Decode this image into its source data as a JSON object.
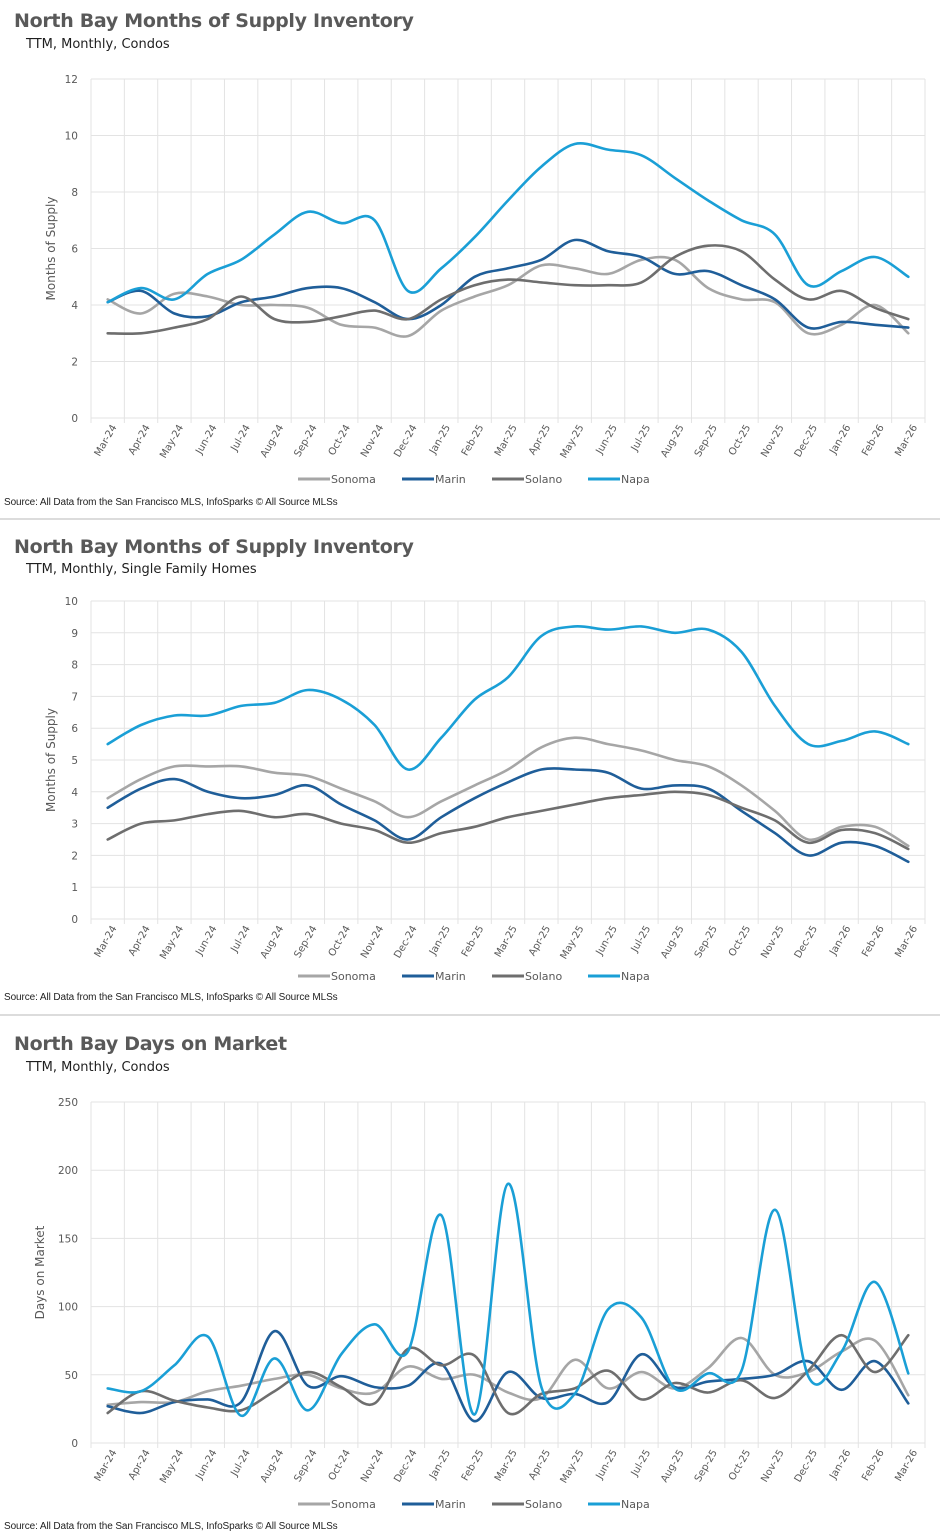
{
  "page": {
    "colors": {
      "Sonoma": "#a6a6a6",
      "Marin": "#1f5e99",
      "Solano": "#6e6e6e",
      "Napa": "#1a9fd6",
      "grid": "#e3e3e3",
      "title": "#595959"
    }
  },
  "chart_data": [
    {
      "type": "line",
      "title": "North Bay Months of Supply Inventory",
      "subtitle": "TTM, Monthly, Condos",
      "xlabel": "",
      "ylabel": "Months of Supply",
      "ylim": [
        0,
        12
      ],
      "yticks": [
        0,
        2,
        4,
        6,
        8,
        10,
        12
      ],
      "grid": true,
      "legend": "bottom",
      "source": "Source: All Data from the San Francisco MLS, InfoSparks © All Source MLSs",
      "categories": [
        "Mar-24",
        "Apr-24",
        "May-24",
        "Jun-24",
        "Jul-24",
        "Aug-24",
        "Sep-24",
        "Oct-24",
        "Nov-24",
        "Dec-24",
        "Jan-25",
        "Feb-25",
        "Mar-25",
        "Apr-25",
        "May-25",
        "Jun-25",
        "Jul-25",
        "Aug-25",
        "Sep-25",
        "Oct-25",
        "Nov-25",
        "Dec-25",
        "Jan-26",
        "Feb-26",
        "Mar-26"
      ],
      "series": [
        {
          "name": "Sonoma",
          "values": [
            4.2,
            3.7,
            4.4,
            4.3,
            4.0,
            4.0,
            3.9,
            3.3,
            3.2,
            2.9,
            3.8,
            4.3,
            4.7,
            5.4,
            5.3,
            5.1,
            5.6,
            5.6,
            4.6,
            4.2,
            4.1,
            3.0,
            3.3,
            4.0,
            3.0
          ]
        },
        {
          "name": "Marin",
          "values": [
            4.1,
            4.5,
            3.7,
            3.6,
            4.1,
            4.3,
            4.6,
            4.6,
            4.1,
            3.5,
            4.0,
            5.0,
            5.3,
            5.6,
            6.3,
            5.9,
            5.7,
            5.1,
            5.2,
            4.7,
            4.2,
            3.2,
            3.4,
            3.3,
            3.2
          ]
        },
        {
          "name": "Solano",
          "values": [
            3.0,
            3.0,
            3.2,
            3.5,
            4.3,
            3.5,
            3.4,
            3.6,
            3.8,
            3.5,
            4.2,
            4.7,
            4.9,
            4.8,
            4.7,
            4.7,
            4.8,
            5.7,
            6.1,
            5.9,
            4.9,
            4.2,
            4.5,
            3.9,
            3.5
          ]
        },
        {
          "name": "Napa",
          "values": [
            4.1,
            4.6,
            4.2,
            5.1,
            5.6,
            6.5,
            7.3,
            6.9,
            7.0,
            4.5,
            5.3,
            6.4,
            7.7,
            8.9,
            9.7,
            9.5,
            9.3,
            8.5,
            7.7,
            7.0,
            6.5,
            4.7,
            5.2,
            5.7,
            5.0
          ]
        }
      ]
    },
    {
      "type": "line",
      "title": "North Bay Months of Supply Inventory",
      "subtitle": "TTM, Monthly, Single Family Homes",
      "xlabel": "",
      "ylabel": "Months of Supply",
      "ylim": [
        0,
        10
      ],
      "yticks": [
        0,
        1,
        2,
        3,
        4,
        5,
        6,
        7,
        8,
        9,
        10
      ],
      "grid": true,
      "legend": "bottom",
      "source": "Source: All Data from the San Francisco MLS, InfoSparks © All Source MLSs",
      "categories": [
        "Mar-24",
        "Apr-24",
        "May-24",
        "Jun-24",
        "Jul-24",
        "Aug-24",
        "Sep-24",
        "Oct-24",
        "Nov-24",
        "Dec-24",
        "Jan-25",
        "Feb-25",
        "Mar-25",
        "Apr-25",
        "May-25",
        "Jun-25",
        "Jul-25",
        "Aug-25",
        "Sep-25",
        "Oct-25",
        "Nov-25",
        "Dec-25",
        "Jan-26",
        "Feb-26",
        "Mar-26"
      ],
      "series": [
        {
          "name": "Sonoma",
          "values": [
            3.8,
            4.4,
            4.8,
            4.8,
            4.8,
            4.6,
            4.5,
            4.1,
            3.7,
            3.2,
            3.7,
            4.2,
            4.7,
            5.4,
            5.7,
            5.5,
            5.3,
            5.0,
            4.8,
            4.2,
            3.4,
            2.5,
            2.9,
            2.9,
            2.3
          ]
        },
        {
          "name": "Marin",
          "values": [
            3.5,
            4.1,
            4.4,
            4.0,
            3.8,
            3.9,
            4.2,
            3.6,
            3.1,
            2.5,
            3.2,
            3.8,
            4.3,
            4.7,
            4.7,
            4.6,
            4.1,
            4.2,
            4.1,
            3.4,
            2.7,
            2.0,
            2.4,
            2.3,
            1.8
          ]
        },
        {
          "name": "Solano",
          "values": [
            2.5,
            3.0,
            3.1,
            3.3,
            3.4,
            3.2,
            3.3,
            3.0,
            2.8,
            2.4,
            2.7,
            2.9,
            3.2,
            3.4,
            3.6,
            3.8,
            3.9,
            4.0,
            3.9,
            3.5,
            3.1,
            2.4,
            2.8,
            2.7,
            2.2
          ]
        },
        {
          "name": "Napa",
          "values": [
            5.5,
            6.1,
            6.4,
            6.4,
            6.7,
            6.8,
            7.2,
            6.9,
            6.1,
            4.7,
            5.7,
            6.9,
            7.6,
            8.9,
            9.2,
            9.1,
            9.2,
            9.0,
            9.1,
            8.4,
            6.7,
            5.5,
            5.6,
            5.9,
            5.5
          ]
        }
      ]
    },
    {
      "type": "line",
      "title": "North Bay Days on Market",
      "subtitle": "TTM, Monthly, Condos",
      "xlabel": "",
      "ylabel": "Days on Market",
      "ylim": [
        0,
        250
      ],
      "yticks": [
        0,
        50,
        100,
        150,
        200,
        250
      ],
      "grid": true,
      "legend": "bottom",
      "source": "Source: All Data from the San Francisco MLS, InfoSparks © All Source MLSs",
      "categories": [
        "Mar-24",
        "Apr-24",
        "May-24",
        "Jun-24",
        "Jul-24",
        "Aug-24",
        "Sep-24",
        "Oct-24",
        "Nov-24",
        "Dec-24",
        "Jan-25",
        "Feb-25",
        "Mar-25",
        "Apr-25",
        "May-25",
        "Jun-25",
        "Jul-25",
        "Aug-25",
        "Sep-25",
        "Oct-25",
        "Nov-25",
        "Dec-25",
        "Jan-26",
        "Feb-26",
        "Mar-26"
      ],
      "series": [
        {
          "name": "Sonoma",
          "values": [
            28,
            30,
            30,
            38,
            42,
            47,
            50,
            40,
            37,
            56,
            47,
            50,
            37,
            33,
            61,
            40,
            52,
            40,
            55,
            77,
            50,
            52,
            67,
            75,
            35
          ]
        },
        {
          "name": "Marin",
          "values": [
            27,
            22,
            30,
            32,
            30,
            82,
            42,
            49,
            41,
            42,
            58,
            16,
            52,
            33,
            36,
            30,
            65,
            41,
            45,
            47,
            50,
            60,
            39,
            60,
            29
          ]
        },
        {
          "name": "Solano",
          "values": [
            22,
            38,
            31,
            26,
            24,
            38,
            52,
            41,
            29,
            69,
            57,
            64,
            22,
            36,
            40,
            53,
            32,
            44,
            37,
            46,
            33,
            53,
            79,
            52,
            79
          ]
        },
        {
          "name": "Napa",
          "values": [
            40,
            38,
            57,
            78,
            20,
            62,
            24,
            65,
            87,
            67,
            167,
            21,
            190,
            41,
            36,
            98,
            92,
            40,
            51,
            53,
            171,
            49,
            67,
            118,
            51
          ]
        }
      ]
    }
  ]
}
